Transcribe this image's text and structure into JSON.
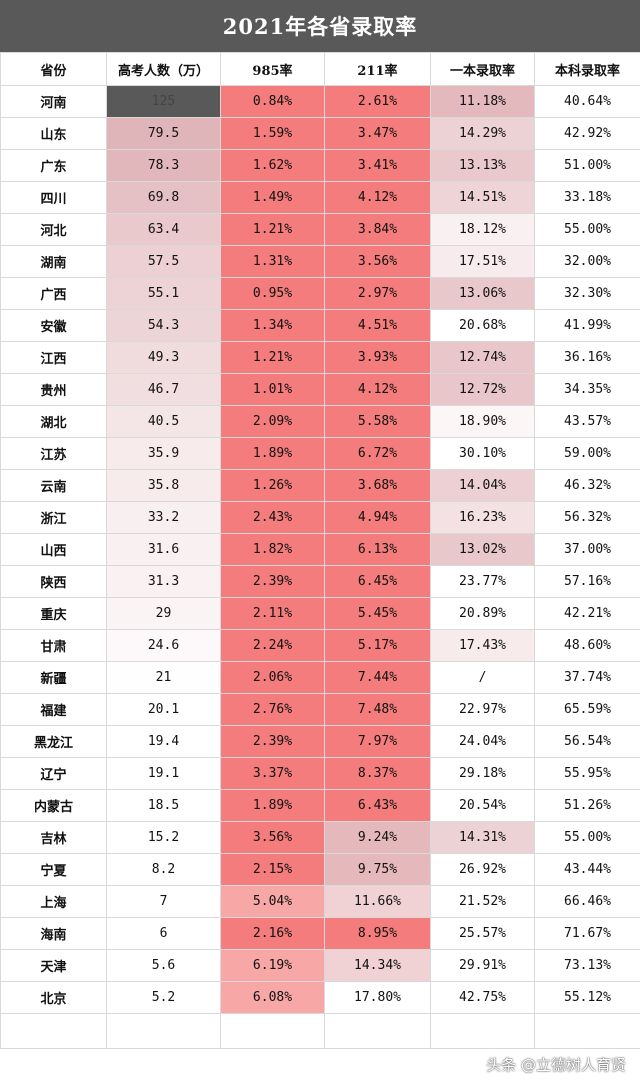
{
  "title": "2021年各省录取率",
  "headers": [
    "省份",
    "高考人数（万）",
    "985率",
    "211率",
    "一本录取率",
    "本科录取率"
  ],
  "rows": [
    [
      "河南",
      "125",
      "0.84%",
      "2.61%",
      "11.18%",
      "40.64%"
    ],
    [
      "山东",
      "79.5",
      "1.59%",
      "3.47%",
      "14.29%",
      "42.92%"
    ],
    [
      "广东",
      "78.3",
      "1.62%",
      "3.41%",
      "13.13%",
      "51.00%"
    ],
    [
      "四川",
      "69.8",
      "1.49%",
      "4.12%",
      "14.51%",
      "33.18%"
    ],
    [
      "河北",
      "63.4",
      "1.21%",
      "3.84%",
      "18.12%",
      "55.00%"
    ],
    [
      "湖南",
      "57.5",
      "1.31%",
      "3.56%",
      "17.51%",
      "32.00%"
    ],
    [
      "广西",
      "55.1",
      "0.95%",
      "2.97%",
      "13.06%",
      "32.30%"
    ],
    [
      "安徽",
      "54.3",
      "1.34%",
      "4.51%",
      "20.68%",
      "41.99%"
    ],
    [
      "江西",
      "49.3",
      "1.21%",
      "3.93%",
      "12.74%",
      "36.16%"
    ],
    [
      "贵州",
      "46.7",
      "1.01%",
      "4.12%",
      "12.72%",
      "34.35%"
    ],
    [
      "湖北",
      "40.5",
      "2.09%",
      "5.58%",
      "18.90%",
      "43.57%"
    ],
    [
      "江苏",
      "35.9",
      "1.89%",
      "6.72%",
      "30.10%",
      "59.00%"
    ],
    [
      "云南",
      "35.8",
      "1.26%",
      "3.68%",
      "14.04%",
      "46.32%"
    ],
    [
      "浙江",
      "33.2",
      "2.43%",
      "4.94%",
      "16.23%",
      "56.32%"
    ],
    [
      "山西",
      "31.6",
      "1.82%",
      "6.13%",
      "13.02%",
      "37.00%"
    ],
    [
      "陕西",
      "31.3",
      "2.39%",
      "6.45%",
      "23.77%",
      "57.16%"
    ],
    [
      "重庆",
      "29",
      "2.11%",
      "5.45%",
      "20.89%",
      "42.21%"
    ],
    [
      "甘肃",
      "24.6",
      "2.24%",
      "5.17%",
      "17.43%",
      "48.60%"
    ],
    [
      "新疆",
      "21",
      "2.06%",
      "7.44%",
      "/",
      "37.74%"
    ],
    [
      "福建",
      "20.1",
      "2.76%",
      "7.48%",
      "22.97%",
      "65.59%"
    ],
    [
      "黑龙江",
      "19.4",
      "2.39%",
      "7.97%",
      "24.04%",
      "56.54%"
    ],
    [
      "辽宁",
      "19.1",
      "3.37%",
      "8.37%",
      "29.18%",
      "55.95%"
    ],
    [
      "内蒙古",
      "18.5",
      "1.89%",
      "6.43%",
      "20.54%",
      "51.26%"
    ],
    [
      "吉林",
      "15.2",
      "3.56%",
      "9.24%",
      "14.31%",
      "55.00%"
    ],
    [
      "宁夏",
      "8.2",
      "2.15%",
      "9.75%",
      "26.92%",
      "43.44%"
    ],
    [
      "上海",
      "7",
      "5.04%",
      "11.66%",
      "21.52%",
      "66.46%"
    ],
    [
      "海南",
      "6",
      "2.16%",
      "8.95%",
      "25.57%",
      "71.67%"
    ],
    [
      "天津",
      "5.6",
      "6.19%",
      "14.34%",
      "29.91%",
      "73.13%"
    ],
    [
      "北京",
      "5.2",
      "6.08%",
      "17.80%",
      "42.75%",
      "55.12%"
    ]
  ],
  "watermark": "头条 @立德树人育贤",
  "colors": {
    "title_bg": "#595959",
    "heat_high": "#f47c7c",
    "heat_dark": "#595959"
  }
}
